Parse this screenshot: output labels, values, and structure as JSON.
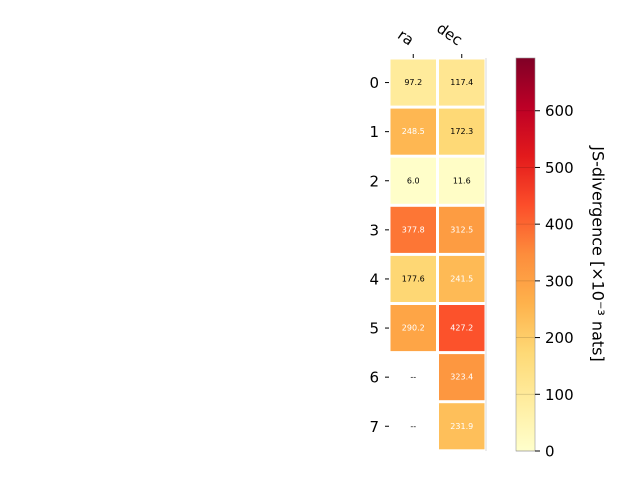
{
  "chart_data": {
    "type": "heatmap",
    "columns": [
      "ra",
      "dec"
    ],
    "rows": [
      "0",
      "1",
      "2",
      "3",
      "4",
      "5",
      "6",
      "7"
    ],
    "values": [
      [
        97.2,
        117.4
      ],
      [
        248.5,
        172.3
      ],
      [
        6.0,
        11.6
      ],
      [
        377.8,
        312.5
      ],
      [
        177.6,
        241.5
      ],
      [
        290.2,
        427.2
      ],
      [
        null,
        323.4
      ],
      [
        null,
        231.9
      ]
    ],
    "missing_label": "--",
    "colorbar": {
      "label": "JS-divergence [×10⁻³ nats]",
      "range": [
        0,
        693
      ],
      "ticks": [
        0,
        100,
        200,
        300,
        400,
        500,
        600
      ],
      "colormap": "YlOrRd"
    }
  }
}
